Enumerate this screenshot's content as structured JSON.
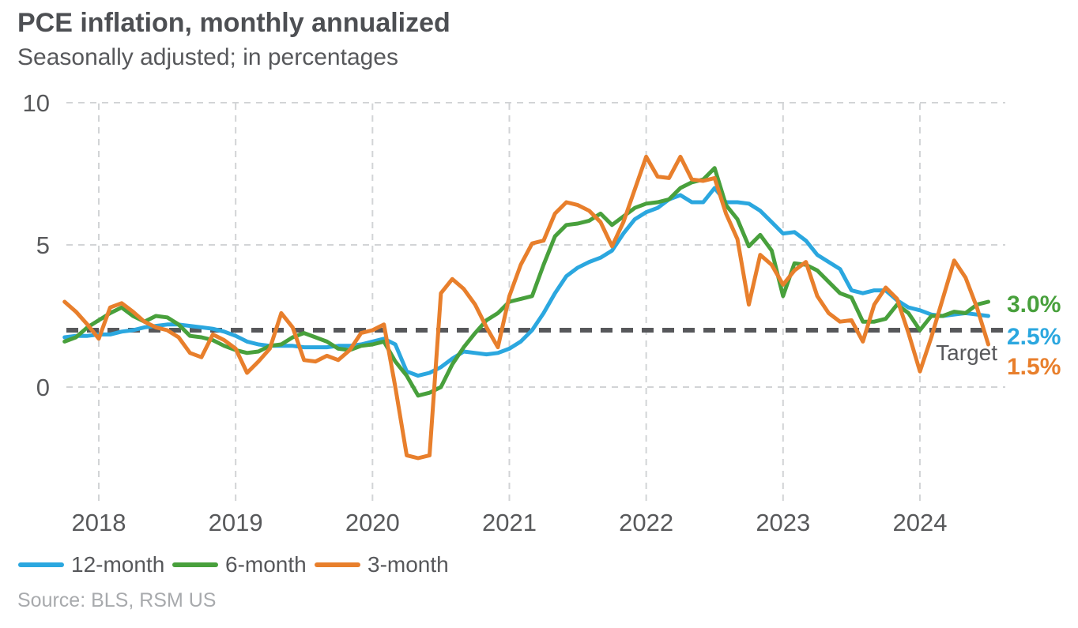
{
  "header": {
    "title": "PCE inflation, monthly annualized",
    "subtitle": "Seasonally adjusted; in percentages"
  },
  "legend": {
    "items": [
      {
        "label": "12-month"
      },
      {
        "label": "6-month"
      },
      {
        "label": "3-month"
      }
    ]
  },
  "footer": {
    "source": "Source: BLS, RSM US"
  },
  "colors": {
    "blue": "#2BA7DF",
    "green": "#48A03C",
    "orange": "#E87F2C",
    "grid": "#D2D4D6",
    "target_line": "#57585B",
    "axis_text": "#58595B",
    "title_text": "#4D4F53",
    "source_text": "#A8AAAD"
  },
  "chart_data": {
    "type": "line",
    "title": "PCE inflation, monthly annualized",
    "subtitle": "Seasonally adjusted; in percentages",
    "x_start_month": "2017-10",
    "x_end_month": "2024-07",
    "x_tick_labels": [
      "2018",
      "2019",
      "2020",
      "2021",
      "2022",
      "2023",
      "2024"
    ],
    "y_ticks": [
      {
        "value": 0,
        "label": "0"
      },
      {
        "value": 5,
        "label": "5"
      },
      {
        "value": 10,
        "label": "10"
      }
    ],
    "ylim": [
      -4.2,
      10
    ],
    "grid": true,
    "legend_position": "bottom",
    "target_line": {
      "value": 2,
      "label": "Target"
    },
    "series": [
      {
        "name": "12-month",
        "color": "#2BA7DF",
        "end_label": "2.5%",
        "values": [
          1.75,
          1.8,
          1.8,
          1.85,
          1.85,
          1.95,
          2.0,
          2.1,
          2.15,
          2.2,
          2.2,
          2.15,
          2.1,
          2.05,
          1.95,
          1.8,
          1.6,
          1.5,
          1.45,
          1.45,
          1.45,
          1.4,
          1.4,
          1.4,
          1.45,
          1.45,
          1.5,
          1.6,
          1.7,
          1.5,
          0.55,
          0.4,
          0.5,
          0.7,
          1.0,
          1.25,
          1.2,
          1.15,
          1.2,
          1.35,
          1.6,
          2.0,
          2.6,
          3.3,
          3.9,
          4.2,
          4.4,
          4.55,
          4.8,
          5.4,
          5.9,
          6.15,
          6.3,
          6.6,
          6.75,
          6.5,
          6.5,
          7.0,
          6.5,
          6.5,
          6.45,
          6.2,
          5.8,
          5.4,
          5.45,
          5.15,
          4.65,
          4.4,
          4.15,
          3.4,
          3.3,
          3.4,
          3.4,
          3.05,
          2.8,
          2.7,
          2.55,
          2.5,
          2.55,
          2.6,
          2.55,
          2.5
        ]
      },
      {
        "name": "6-month",
        "color": "#48A03C",
        "end_label": "3.0%",
        "values": [
          1.6,
          1.75,
          2.1,
          2.35,
          2.6,
          2.8,
          2.5,
          2.3,
          2.5,
          2.45,
          2.2,
          1.8,
          1.75,
          1.65,
          1.45,
          1.3,
          1.2,
          1.25,
          1.45,
          1.5,
          1.75,
          1.9,
          1.75,
          1.6,
          1.35,
          1.3,
          1.45,
          1.5,
          1.6,
          0.9,
          0.4,
          -0.3,
          -0.2,
          0.0,
          0.8,
          1.4,
          1.9,
          2.35,
          2.6,
          3.0,
          3.1,
          3.2,
          4.3,
          5.3,
          5.7,
          5.75,
          5.85,
          6.1,
          5.7,
          6.0,
          6.3,
          6.45,
          6.5,
          6.6,
          7.0,
          7.2,
          7.3,
          7.7,
          6.4,
          5.9,
          4.95,
          5.35,
          4.8,
          3.2,
          4.35,
          4.3,
          4.1,
          3.7,
          3.3,
          3.15,
          2.3,
          2.3,
          2.4,
          2.9,
          2.6,
          2.0,
          2.5,
          2.5,
          2.65,
          2.6,
          2.9,
          3.0
        ]
      },
      {
        "name": "3-month",
        "color": "#E87F2C",
        "end_label": "1.5%",
        "values": [
          3.0,
          2.65,
          2.2,
          1.7,
          2.8,
          2.95,
          2.65,
          2.3,
          2.1,
          2.0,
          1.75,
          1.2,
          1.05,
          1.85,
          1.65,
          1.35,
          0.5,
          0.9,
          1.35,
          2.6,
          2.1,
          0.95,
          0.9,
          1.1,
          0.95,
          1.3,
          1.9,
          2.0,
          2.2,
          0.0,
          -2.4,
          -2.5,
          -2.4,
          3.3,
          3.8,
          3.45,
          2.9,
          2.1,
          1.4,
          3.2,
          4.3,
          5.05,
          5.15,
          6.1,
          6.5,
          6.4,
          6.2,
          5.8,
          4.95,
          5.8,
          6.95,
          8.1,
          7.4,
          7.35,
          8.1,
          7.3,
          7.25,
          7.35,
          6.1,
          5.2,
          2.9,
          4.65,
          4.3,
          3.6,
          4.1,
          4.4,
          3.2,
          2.6,
          2.3,
          2.35,
          1.6,
          2.9,
          3.5,
          3.1,
          1.9,
          0.55,
          1.75,
          3.1,
          4.45,
          3.85,
          2.8,
          1.5
        ]
      }
    ]
  }
}
